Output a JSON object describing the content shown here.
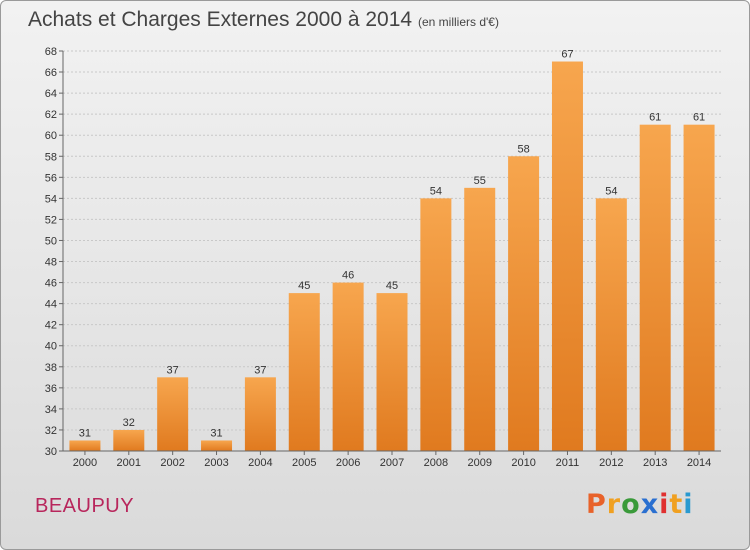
{
  "chart_data": {
    "type": "bar",
    "title": "Achats et Charges Externes 2000 à 2014",
    "subtitle": "(en milliers d'€)",
    "categories": [
      "2000",
      "2001",
      "2002",
      "2003",
      "2004",
      "2005",
      "2006",
      "2007",
      "2008",
      "2009",
      "2010",
      "2011",
      "2012",
      "2013",
      "2014"
    ],
    "values": [
      31,
      32,
      37,
      31,
      37,
      45,
      46,
      45,
      54,
      55,
      58,
      67,
      54,
      61,
      61
    ],
    "ylim": [
      30,
      68
    ],
    "yticks": [
      30,
      32,
      34,
      36,
      38,
      40,
      42,
      44,
      46,
      48,
      50,
      52,
      54,
      56,
      58,
      60,
      62,
      64,
      66,
      68
    ],
    "xlabel": "",
    "ylabel": "",
    "grid": true,
    "data_labels": true,
    "colors": {
      "bar_light": "#f7a64e",
      "bar_dark": "#e07a1f",
      "grid": "#c8c8c8",
      "axis": "#666666"
    }
  },
  "location": "BEAUPUY",
  "logo": {
    "letters": [
      "P",
      "r",
      "o",
      "x",
      "i",
      "t",
      "i"
    ],
    "colors": [
      "#e8622a",
      "#f0a020",
      "#3a9a3a",
      "#2a6fd0",
      "#e03030",
      "#f0a020",
      "#2a9ad0"
    ]
  }
}
